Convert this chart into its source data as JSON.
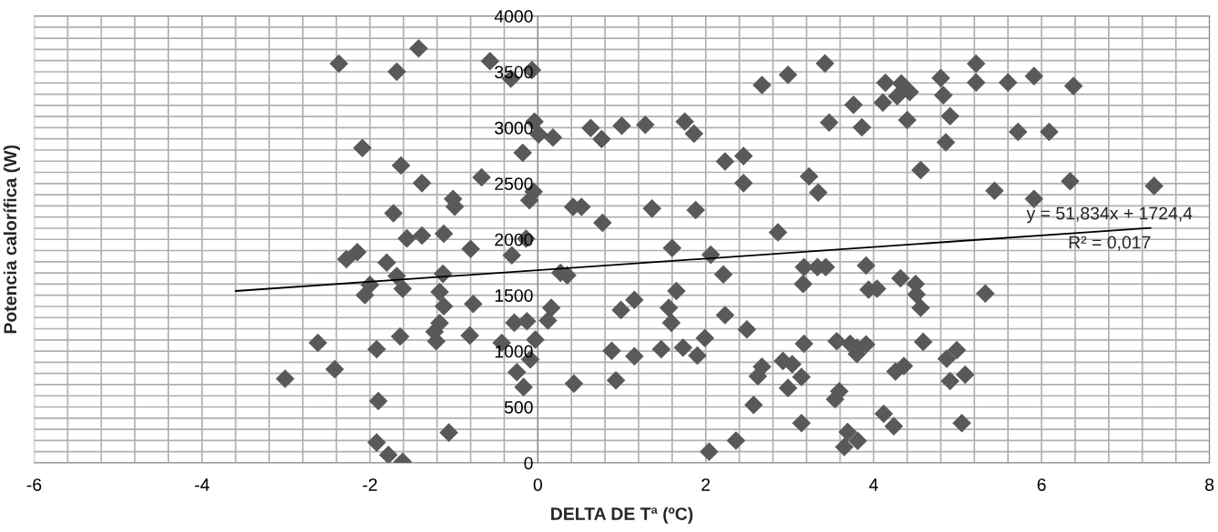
{
  "chart_data": {
    "type": "scatter",
    "xlabel": "DELTA DE Tª (ºC)",
    "ylabel": "Potencia calorífica (W)",
    "xlim": [
      -6,
      8
    ],
    "ylim": [
      0,
      4000
    ],
    "xticks": [
      -6,
      {
        "value": -5.6,
        "label": null
      },
      {
        "value": -5.2,
        "label": null
      },
      {
        "value": -4.8,
        "label": null
      },
      {
        "value": -4.4,
        "label": null
      },
      -4,
      {
        "value": -3.6,
        "label": null
      },
      {
        "value": -3.2,
        "label": null
      },
      {
        "value": -2.8,
        "label": null
      },
      {
        "value": -2.4,
        "label": null
      },
      -2,
      {
        "value": -1.6,
        "label": null
      },
      {
        "value": -1.2,
        "label": null
      },
      {
        "value": -0.8,
        "label": null
      },
      {
        "value": -0.4,
        "label": null
      },
      0,
      {
        "value": 0.4,
        "label": null
      },
      {
        "value": 0.8,
        "label": null
      },
      {
        "value": 1.2,
        "label": null
      },
      {
        "value": 1.6,
        "label": null
      },
      2,
      {
        "value": 2.4,
        "label": null
      },
      {
        "value": 2.8,
        "label": null
      },
      {
        "value": 3.2,
        "label": null
      },
      {
        "value": 3.6,
        "label": null
      },
      4,
      {
        "value": 4.4,
        "label": null
      },
      {
        "value": 4.8,
        "label": null
      },
      {
        "value": 5.2,
        "label": null
      },
      {
        "value": 5.6,
        "label": null
      },
      6,
      {
        "value": 6.4,
        "label": null
      },
      {
        "value": 6.8,
        "label": null
      },
      {
        "value": 7.2,
        "label": null
      },
      {
        "value": 7.6,
        "label": null
      },
      8
    ],
    "yticks": [
      0,
      {
        "value": 100,
        "label": null
      },
      {
        "value": 200,
        "label": null
      },
      {
        "value": 300,
        "label": null
      },
      {
        "value": 400,
        "label": null
      },
      500,
      {
        "value": 600,
        "label": null
      },
      {
        "value": 700,
        "label": null
      },
      {
        "value": 800,
        "label": null
      },
      {
        "value": 900,
        "label": null
      },
      1000,
      {
        "value": 1100,
        "label": null
      },
      {
        "value": 1200,
        "label": null
      },
      {
        "value": 1300,
        "label": null
      },
      {
        "value": 1400,
        "label": null
      },
      1500,
      {
        "value": 1600,
        "label": null
      },
      {
        "value": 1700,
        "label": null
      },
      {
        "value": 1800,
        "label": null
      },
      {
        "value": 1900,
        "label": null
      },
      2000,
      {
        "value": 2100,
        "label": null
      },
      {
        "value": 2200,
        "label": null
      },
      {
        "value": 2300,
        "label": null
      },
      {
        "value": 2400,
        "label": null
      },
      2500,
      {
        "value": 2600,
        "label": null
      },
      {
        "value": 2700,
        "label": null
      },
      {
        "value": 2800,
        "label": null
      },
      {
        "value": 2900,
        "label": null
      },
      3000,
      {
        "value": 3100,
        "label": null
      },
      {
        "value": 3200,
        "label": null
      },
      {
        "value": 3300,
        "label": null
      },
      {
        "value": 3400,
        "label": null
      },
      3500,
      {
        "value": 3600,
        "label": null
      },
      {
        "value": 3700,
        "label": null
      },
      {
        "value": 3800,
        "label": null
      },
      {
        "value": 3900,
        "label": null
      },
      4000
    ],
    "grid": true,
    "legend": false,
    "marker": "diamond",
    "annotations": [
      "y = 51,834x + 1724,4",
      "R² = 0,017"
    ],
    "series": [
      {
        "color": "#595959",
        "x": [
          -3.01,
          -2.62,
          -2.42,
          -2.37,
          -2.28,
          -2.15,
          -2.09,
          -2.06,
          -2.0,
          -1.92,
          -1.9,
          -1.92,
          -1.78,
          -1.8,
          -1.72,
          -1.68,
          -1.68,
          -1.63,
          -1.64,
          -1.61,
          -1.61,
          -1.56,
          -1.42,
          -1.38,
          -1.38,
          -1.21,
          -1.23,
          -1.17,
          -1.17,
          -1.13,
          -1.12,
          -1.12,
          -1.06,
          -1.01,
          -0.99,
          -0.81,
          -0.8,
          -0.77,
          -0.67,
          -0.57,
          -0.43,
          -0.32,
          -0.31,
          -0.28,
          -0.25,
          -0.18,
          -0.17,
          -0.14,
          -0.13,
          -0.1,
          -0.09,
          -0.07,
          -0.05,
          -0.04,
          -0.03,
          0.01,
          0.12,
          0.18,
          0.16,
          0.27,
          0.35,
          0.43,
          0.63,
          0.76,
          0.42,
          0.52,
          0.77,
          0.93,
          0.88,
          0.99,
          1.0,
          1.15,
          1.15,
          1.28,
          1.36,
          1.47,
          1.56,
          1.59,
          1.6,
          1.65,
          1.73,
          1.75,
          1.86,
          1.88,
          1.9,
          1.99,
          2.06,
          2.04,
          2.21,
          2.23,
          2.23,
          2.36,
          2.45,
          2.45,
          2.49,
          2.57,
          2.62,
          2.67,
          2.67,
          2.86,
          2.92,
          2.98,
          2.98,
          3.03,
          3.14,
          3.14,
          3.16,
          3.17,
          3.17,
          3.23,
          3.34,
          3.33,
          3.43,
          3.42,
          3.47,
          3.56,
          3.54,
          3.59,
          3.76,
          3.86,
          4.11,
          4.14,
          4.28,
          4.33,
          4.43,
          4.4,
          4.8,
          4.83,
          4.91,
          4.86,
          5.22,
          5.22,
          5.6,
          5.91,
          6.38,
          5.72,
          6.09,
          4.56,
          5.44,
          5.91,
          6.34,
          7.34,
          3.91,
          3.94,
          4.04,
          4.32,
          4.5,
          4.51,
          4.56,
          5.33,
          3.72,
          3.8,
          3.8,
          3.91,
          4.59,
          4.87,
          4.99,
          5.09,
          4.91,
          4.26,
          4.36,
          4.12,
          4.24,
          5.05,
          3.69,
          3.65,
          3.81
        ],
        "values": [
          752,
          1074,
          838,
          3573,
          1823,
          1886,
          2818,
          1501,
          1593,
          1017,
          553,
          182,
          71,
          1792,
          2234,
          3501,
          1672,
          2661,
          1131,
          10,
          1558,
          2009,
          3709,
          2504,
          2034,
          1088,
          1174,
          1251,
          1530,
          1692,
          1402,
          2051,
          271,
          2362,
          2293,
          1140,
          1915,
          1422,
          2556,
          3595,
          1074,
          3439,
          1858,
          1254,
          812,
          2775,
          678,
          2006,
          1268,
          2350,
          926,
          3516,
          2427,
          3054,
          1103,
          2940,
          1274,
          2912,
          1387,
          1701,
          1678,
          709,
          2997,
          2897,
          2291,
          2291,
          2148,
          738,
          1003,
          1368,
          3017,
          1459,
          954,
          3026,
          2276,
          1017,
          1387,
          1254,
          1923,
          1538,
          1031,
          3054,
          2946,
          2262,
          960,
          1117,
          1863,
          100,
          1687,
          2698,
          1322,
          199,
          2746,
          2504,
          1194,
          519,
          775,
          860,
          3382,
          2063,
          912,
          3473,
          670,
          883,
          356,
          769,
          1601,
          1752,
          1066,
          2564,
          2419,
          1752,
          1752,
          3575,
          3046,
          1088,
          570,
          641,
          3205,
          3003,
          3225,
          3402,
          3282,
          3396,
          3319,
          3068,
          3444,
          3291,
          3103,
          2869,
          3573,
          3405,
          3405,
          3462,
          3373,
          2963,
          2963,
          2621,
          2436,
          2362,
          2521,
          2479,
          1766,
          1550,
          1558,
          1652,
          1601,
          1507,
          1387,
          1516,
          1066,
          1031,
          974,
          1060,
          1083,
          932,
          1009,
          789,
          732,
          818,
          866,
          439,
          328,
          356,
          276,
          142,
          197
        ]
      },
      {
        "type": "line",
        "color": "#000000",
        "marker": "none",
        "x": [
          -3.6,
          7.3
        ],
        "values": [
          1538,
          2103
        ]
      }
    ]
  }
}
